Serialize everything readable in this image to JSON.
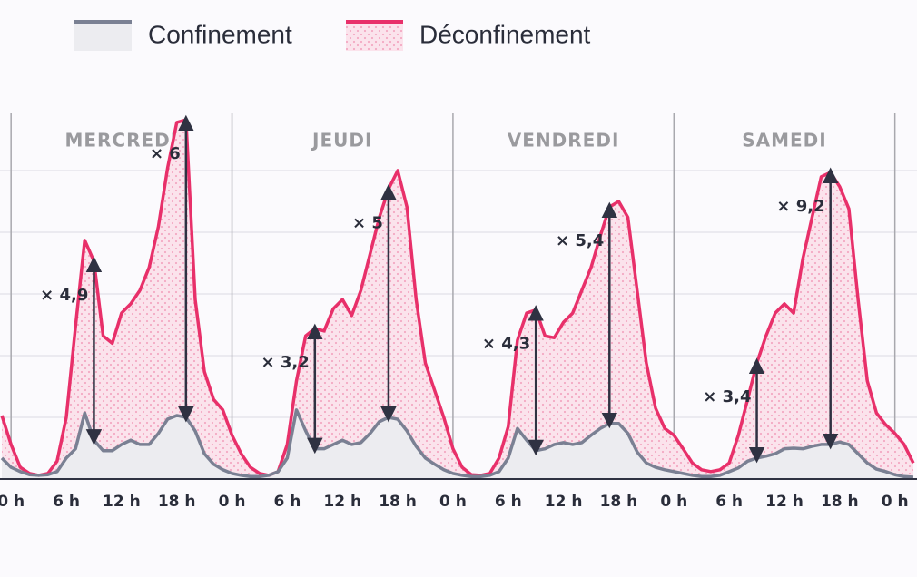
{
  "chart_data": {
    "type": "area",
    "x": [
      -1,
      0,
      1,
      2,
      3,
      4,
      5,
      6,
      7,
      8,
      9,
      10,
      11,
      12,
      13,
      14,
      15,
      16,
      17,
      18,
      19,
      20,
      21,
      22,
      23,
      24,
      25,
      26,
      27,
      28,
      29,
      30,
      31,
      32,
      33,
      34,
      35,
      36,
      37,
      38,
      39,
      40,
      41,
      42,
      43,
      44,
      45,
      46,
      47,
      48,
      49,
      50,
      51,
      52,
      53,
      54,
      55,
      56,
      57,
      58,
      59,
      60,
      61,
      62,
      63,
      64,
      65,
      66,
      67,
      68,
      69,
      70,
      71,
      72,
      73,
      74,
      75,
      76,
      77,
      78,
      79,
      80,
      81,
      82,
      83,
      84,
      85,
      86,
      87,
      88,
      89,
      90,
      91,
      92,
      93,
      94,
      95,
      96,
      97,
      98
    ],
    "series": [
      {
        "name": "Déconfinement",
        "color": "#e8306a",
        "values": [
          10.3,
          5.6,
          1.9,
          0.9,
          0.6,
          0.9,
          2.9,
          10,
          24.7,
          38.7,
          35.3,
          23.2,
          22,
          26.9,
          28.4,
          30.6,
          34.3,
          40.9,
          50.4,
          57.8,
          58.2,
          29.1,
          17.4,
          12.9,
          11.2,
          7.1,
          4.1,
          1.9,
          0.9,
          0.6,
          1.2,
          5.6,
          15.9,
          23.2,
          24.4,
          24,
          27.6,
          29.1,
          26.5,
          30.6,
          36.5,
          42.4,
          47,
          50,
          44.1,
          29.1,
          18.8,
          14.4,
          10,
          4.9,
          1.9,
          0.7,
          0.6,
          0.9,
          3.4,
          8.5,
          22.5,
          26.9,
          27.4,
          23.2,
          22.9,
          25.4,
          26.9,
          30.6,
          34.3,
          39.4,
          44.1,
          45,
          42.4,
          30.6,
          18.8,
          11.5,
          8.2,
          7.1,
          4.9,
          2.6,
          1.5,
          1.2,
          1.5,
          2.6,
          7.1,
          12.9,
          18.8,
          23.2,
          26.9,
          28.4,
          26.9,
          35.7,
          42.4,
          49,
          49.7,
          47.4,
          43.8,
          29.1,
          15.9,
          10.7,
          8.8,
          7.4,
          5.6,
          2.6
        ]
      },
      {
        "name": "Confinement",
        "color": "#7a8093",
        "values": [
          3.4,
          1.9,
          1.2,
          0.7,
          0.6,
          0.7,
          1.2,
          3.4,
          4.9,
          10.7,
          6.3,
          4.6,
          4.6,
          5.6,
          6.3,
          5.6,
          5.6,
          7.4,
          9.7,
          10.3,
          10,
          7.8,
          4.1,
          2.4,
          1.5,
          0.9,
          0.6,
          0.4,
          0.4,
          0.6,
          1.2,
          3.4,
          11.2,
          7.8,
          4.9,
          4.9,
          5.6,
          6.3,
          5.6,
          5.9,
          7.4,
          9.3,
          10,
          9.7,
          7.8,
          5.3,
          3.4,
          2.4,
          1.5,
          0.9,
          0.6,
          0.4,
          0.4,
          0.6,
          1.2,
          3.4,
          8.2,
          6.3,
          4.6,
          4.9,
          5.6,
          5.9,
          5.6,
          5.9,
          7.1,
          8.2,
          9,
          9,
          7.4,
          4.4,
          2.6,
          1.9,
          1.5,
          1.2,
          0.9,
          0.6,
          0.4,
          0.4,
          0.6,
          1.2,
          1.8,
          2.9,
          3.4,
          3.7,
          4.1,
          4.9,
          5,
          4.9,
          5.3,
          5.6,
          5.6,
          6,
          5.6,
          4.1,
          2.6,
          1.6,
          1.2,
          0.7,
          0.4,
          0.3
        ]
      }
    ],
    "xlim": [
      -1.2,
      98.4
    ],
    "ylim": [
      0,
      60
    ],
    "yticks": [
      0,
      10,
      20,
      30,
      40,
      50
    ],
    "grid": true,
    "xticks": [
      {
        "value": 0,
        "label": "0 h"
      },
      {
        "value": 6,
        "label": "6 h"
      },
      {
        "value": 12,
        "label": "12 h"
      },
      {
        "value": 18,
        "label": "18 h"
      },
      {
        "value": 24,
        "label": "0 h"
      },
      {
        "value": 30,
        "label": "6 h"
      },
      {
        "value": 36,
        "label": "12 h"
      },
      {
        "value": 42,
        "label": "18 h"
      },
      {
        "value": 48,
        "label": "0 h"
      },
      {
        "value": 54,
        "label": "6 h"
      },
      {
        "value": 60,
        "label": "12 h"
      },
      {
        "value": 66,
        "label": "18 h"
      },
      {
        "value": 72,
        "label": "0 h"
      },
      {
        "value": 78,
        "label": "6 h"
      },
      {
        "value": 84,
        "label": "12 h"
      },
      {
        "value": 90,
        "label": "18 h"
      },
      {
        "value": 96,
        "label": "0 h"
      }
    ],
    "days": [
      {
        "label": "MERCREDI",
        "start": 0,
        "end": 24
      },
      {
        "label": "JEUDI",
        "start": 24,
        "end": 48
      },
      {
        "label": "VENDREDI",
        "start": 48,
        "end": 72
      },
      {
        "label": "SAMEDI",
        "start": 72,
        "end": 96
      }
    ],
    "annotations": [
      {
        "text": "× 4,9",
        "x": 9
      },
      {
        "text": "× 6",
        "x": 19
      },
      {
        "text": "× 3,2",
        "x": 33
      },
      {
        "text": "× 5",
        "x": 41
      },
      {
        "text": "× 4,3",
        "x": 57
      },
      {
        "text": "× 5,4",
        "x": 65
      },
      {
        "text": "× 3,4",
        "x": 81
      },
      {
        "text": "× 9,2",
        "x": 89
      }
    ]
  }
}
